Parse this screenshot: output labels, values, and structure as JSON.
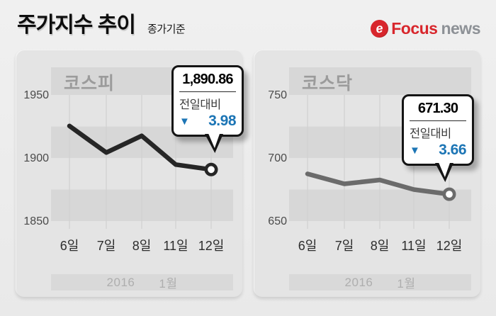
{
  "header": {
    "title": "주가지수 추이",
    "subtitle": "종가기준",
    "logo": {
      "icon": "focus-swirl-icon",
      "brand_primary": "Focus",
      "brand_secondary": "news",
      "primary_color": "#d8262c",
      "secondary_color": "#8d9196"
    }
  },
  "period_bar": {
    "year": "2016",
    "month": "1월"
  },
  "colors": {
    "page_bg": "#ececec",
    "panel_bg": "#e4e4e4",
    "stripe": "#d7d7d7",
    "gridline": "#d0d0d0",
    "kospi_line": "#262626",
    "kosdaq_line": "#6b6b6b",
    "down_blue": "#1c75b5",
    "chart_title_gray": "#9b9b9b",
    "period_bar_bg": "#d9d9d9"
  },
  "chart_data": [
    {
      "type": "line",
      "title": "코스피",
      "categories": [
        "6일",
        "7일",
        "8일",
        "11일",
        "12일"
      ],
      "values": [
        1925.4,
        1904.3,
        1917.6,
        1894.8,
        1890.86
      ],
      "y_ticks": [
        1950,
        1900,
        1850
      ],
      "ylim": [
        1850,
        1970
      ],
      "x_gridlines": true,
      "legend": "none",
      "line_color_key": "kospi_line",
      "callout": {
        "value": "1,890.86",
        "label": "전일대비",
        "direction": "down",
        "icon": "down-triangle-icon",
        "change": "3.98"
      }
    },
    {
      "type": "line",
      "title": "코스닥",
      "categories": [
        "6일",
        "7일",
        "8일",
        "11일",
        "12일"
      ],
      "values": [
        687.4,
        679.5,
        682.6,
        675.0,
        671.3
      ],
      "y_ticks": [
        750,
        700,
        650
      ],
      "ylim": [
        650,
        770
      ],
      "x_gridlines": true,
      "legend": "none",
      "line_color_key": "kosdaq_line",
      "callout": {
        "value": "671.30",
        "label": "전일대비",
        "direction": "down",
        "icon": "down-triangle-icon",
        "change": "3.66"
      }
    }
  ]
}
